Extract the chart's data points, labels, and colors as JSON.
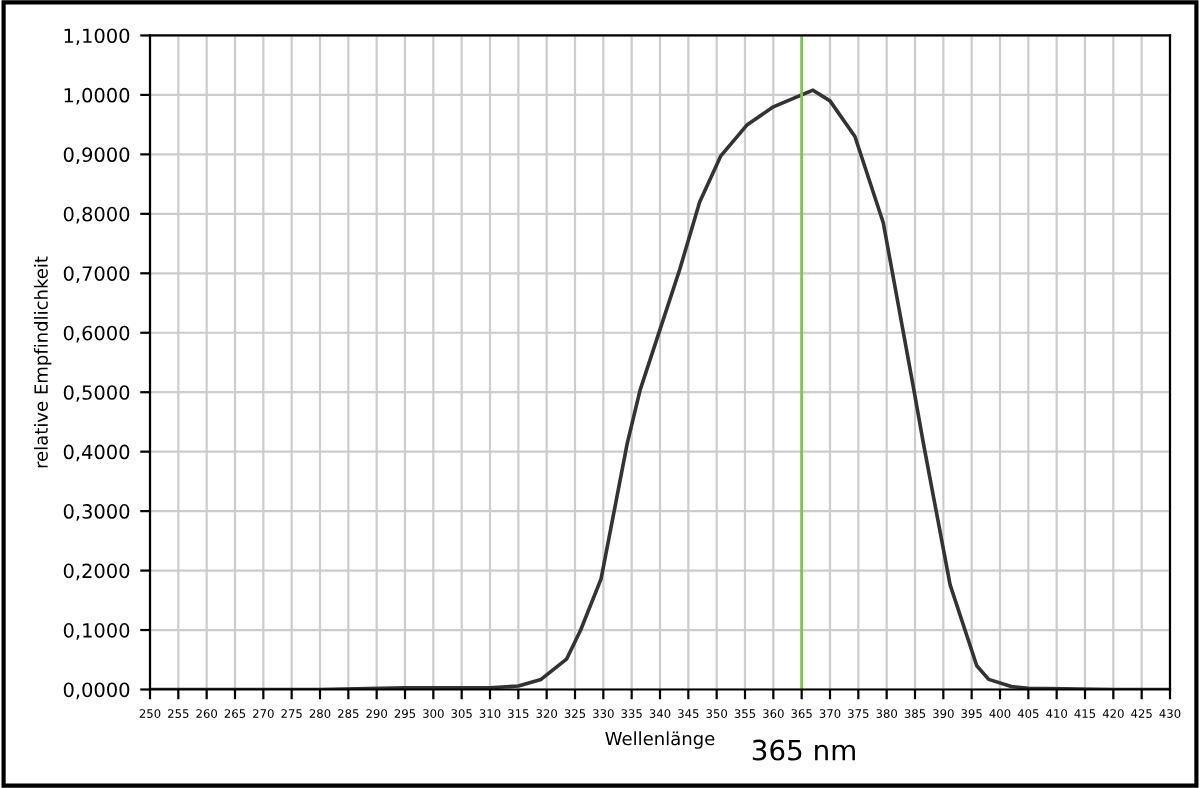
{
  "chart_data": {
    "type": "line",
    "xlabel": "Wellenlänge",
    "ylabel": "relative Empfindlichkeit",
    "annotations": [
      "365 nm"
    ],
    "series": [
      {
        "color": "#333333",
        "x": [
          250,
          280,
          295,
          310,
          315,
          319,
          323.5,
          326,
          329.6,
          334.2,
          336.5,
          343.5,
          347,
          350.7,
          355.4,
          360,
          365,
          367,
          370,
          374.4,
          379.4,
          384.8,
          386.5,
          391.2,
          395.9,
          398,
          402,
          405,
          420,
          430
        ],
        "values": [
          0,
          0,
          0.003,
          0.003,
          0.006,
          0.017,
          0.051,
          0.1,
          0.186,
          0.413,
          0.504,
          0.707,
          0.82,
          0.897,
          0.95,
          0.98,
          1.0,
          1.008,
          0.99,
          0.93,
          0.785,
          0.504,
          0.413,
          0.176,
          0.04,
          0.017,
          0.005,
          0.002,
          0,
          0
        ]
      }
    ],
    "ref_lines": [
      {
        "axis": "x",
        "value": 365,
        "color": "#7ac943",
        "line_style": "solid"
      }
    ],
    "xlim": [
      250,
      430
    ],
    "xticks": [
      250,
      255,
      260,
      265,
      270,
      275,
      280,
      285,
      290,
      295,
      300,
      305,
      310,
      315,
      320,
      325,
      330,
      335,
      340,
      345,
      350,
      355,
      360,
      365,
      370,
      375,
      380,
      385,
      390,
      395,
      400,
      405,
      410,
      415,
      420,
      425,
      430
    ],
    "ylim": [
      0,
      1.1
    ],
    "yticks": [
      {
        "value": 0,
        "label": "0,0000"
      },
      {
        "value": 0.1,
        "label": "0,1000"
      },
      {
        "value": 0.2,
        "label": "0,2000"
      },
      {
        "value": 0.3,
        "label": "0,3000"
      },
      {
        "value": 0.4,
        "label": "0,4000"
      },
      {
        "value": 0.5,
        "label": "0,5000"
      },
      {
        "value": 0.6,
        "label": "0,6000"
      },
      {
        "value": 0.7,
        "label": "0,7000"
      },
      {
        "value": 0.8,
        "label": "0,8000"
      },
      {
        "value": 0.9,
        "label": "0,9000"
      },
      {
        "value": 1.0,
        "label": "1,0000"
      },
      {
        "value": 1.1,
        "label": "1,1000"
      }
    ],
    "grid": true,
    "marker": "none",
    "line_style": "solid",
    "legend": false
  }
}
